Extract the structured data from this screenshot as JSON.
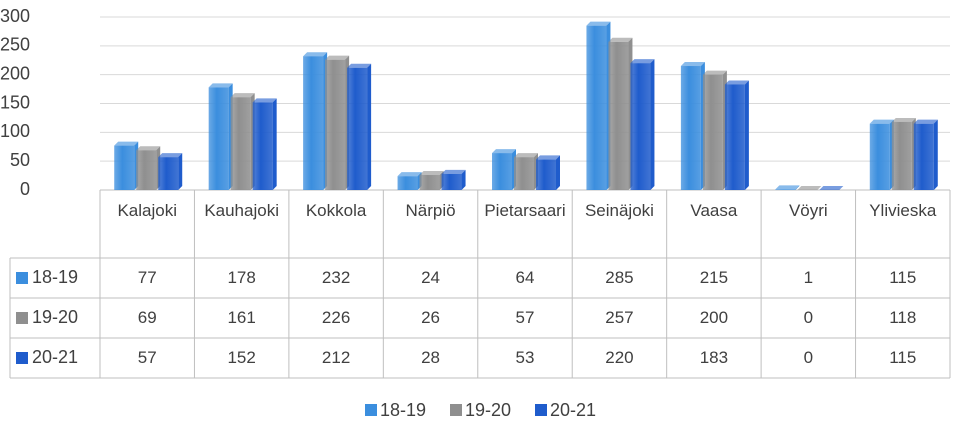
{
  "chart_data": {
    "type": "bar",
    "categories": [
      "Kalajoki",
      "Kauhajoki",
      "Kokkola",
      "Närpiö",
      "Pietarsaari",
      "Seinäjoki",
      "Vaasa",
      "Vöyri",
      "Ylivieska"
    ],
    "series": [
      {
        "name": "18-19",
        "color": "#3b8ede",
        "values": [
          77,
          178,
          232,
          24,
          64,
          285,
          215,
          1,
          115
        ]
      },
      {
        "name": "19-20",
        "color": "#8f8f8f",
        "values": [
          69,
          161,
          226,
          26,
          57,
          257,
          200,
          0,
          118
        ]
      },
      {
        "name": "20-21",
        "color": "#1f5ccc",
        "values": [
          57,
          152,
          212,
          28,
          53,
          220,
          183,
          0,
          115
        ]
      }
    ],
    "ylim": [
      0,
      300
    ],
    "yticks": [
      0,
      50,
      100,
      150,
      200,
      250,
      300
    ],
    "grid": true,
    "legend": "bottom"
  }
}
